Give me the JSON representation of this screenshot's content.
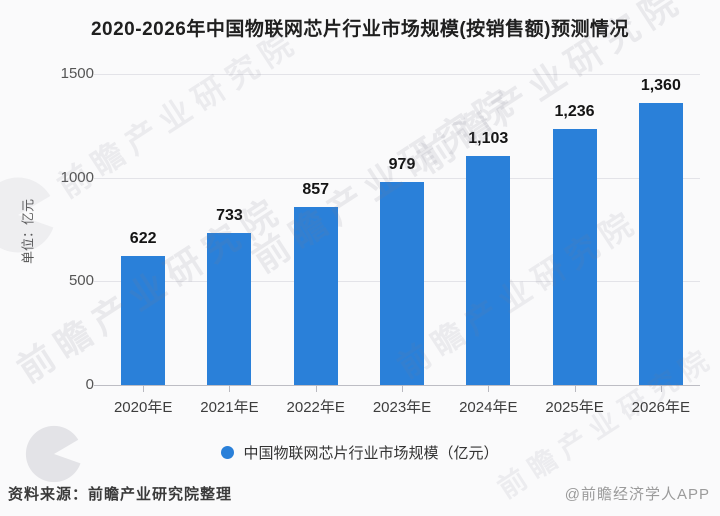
{
  "title": "2020-2026年中国物联网芯片行业市场规模(按销售额)预测情况",
  "colors": {
    "bar": "#2a80d9",
    "background": "#fafafb",
    "gridline": "#e3e3e8",
    "axisline": "#bdbdc4"
  },
  "chart_data": {
    "type": "bar",
    "categories": [
      "2020年E",
      "2021年E",
      "2022年E",
      "2023年E",
      "2024年E",
      "2025年E",
      "2026年E"
    ],
    "values": [
      622,
      733,
      857,
      979,
      1103,
      1236,
      1360
    ],
    "value_labels": [
      "622",
      "733",
      "857",
      "979",
      "1,103",
      "1,236",
      "1,360"
    ],
    "title": "2020-2026年中国物联网芯片行业市场规模(按销售额)预测情况",
    "xlabel": "",
    "ylabel": "单位：亿元",
    "ylim": [
      0,
      1500
    ],
    "yticks": [
      0,
      500,
      1000,
      1500
    ],
    "grid": true,
    "legend": "中国物联网芯片行业市场规模（亿元）",
    "legend_position": "bottom"
  },
  "footer": {
    "source": "资料来源：前瞻产业研究院整理",
    "credit": "@前瞻经济学人APP"
  },
  "watermark": {
    "text": "前瞻产业研究院"
  }
}
